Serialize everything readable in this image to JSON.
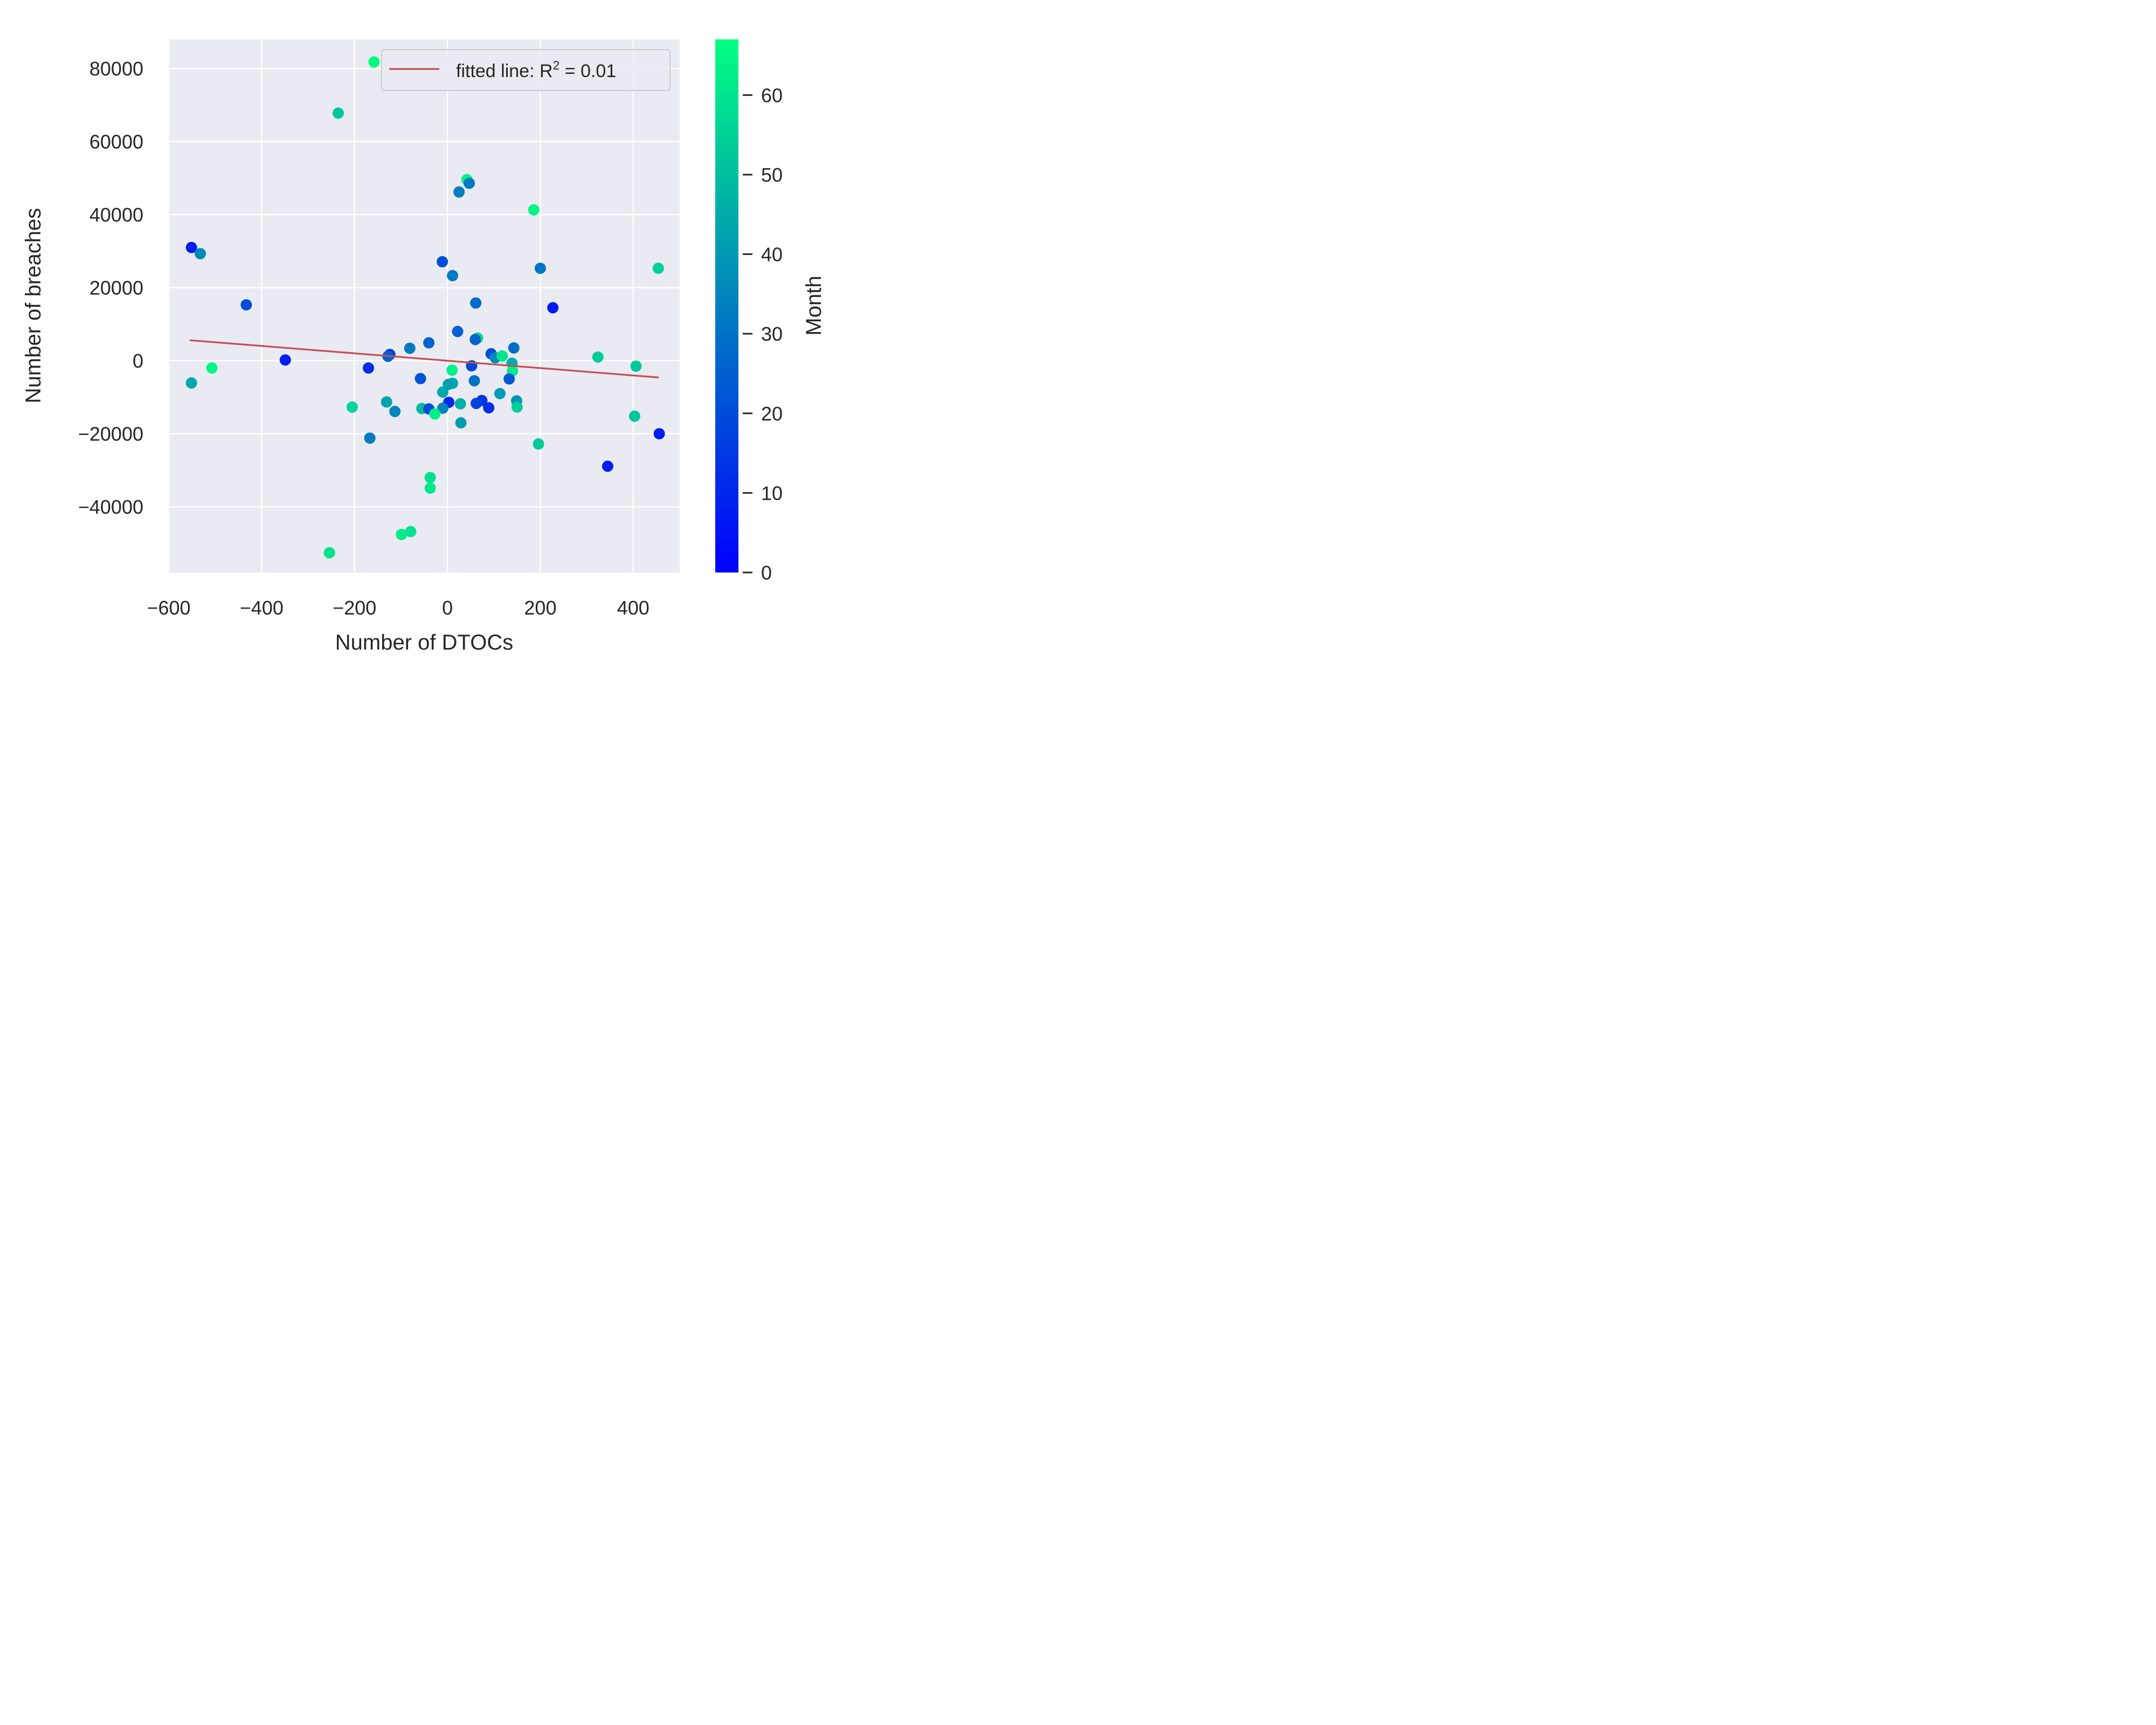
{
  "chart_data": {
    "type": "scatter",
    "xlabel": "Number of DTOCs",
    "ylabel": "Number of breaches",
    "xlim": [
      -600,
      500
    ],
    "ylim": [
      -58000,
      88000
    ],
    "x_ticks": [
      -600,
      -400,
      -200,
      0,
      200,
      400
    ],
    "x_tick_labels": [
      "−600",
      "−400",
      "−200",
      "0",
      "200",
      "400"
    ],
    "y_ticks": [
      -40000,
      -20000,
      0,
      20000,
      40000,
      60000,
      80000
    ],
    "y_tick_labels": [
      "−40000",
      "−20000",
      "0",
      "20000",
      "40000",
      "60000",
      "80000"
    ],
    "grid": true,
    "background": "#eaeaf2",
    "colormap": "winter",
    "colorbar": {
      "label": "Month",
      "range": [
        0,
        67
      ],
      "ticks": [
        0,
        10,
        20,
        30,
        40,
        50,
        60
      ],
      "tick_labels": [
        "0",
        "10",
        "20",
        "30",
        "40",
        "50",
        "60"
      ],
      "colors": [
        "#0000ff",
        "#00ff80"
      ]
    },
    "legend": {
      "position": "top-right",
      "text_main": "fitted line: R",
      "text_sup": "2",
      "text_tail": " = 0.01"
    },
    "fit_line": {
      "x": [
        -555,
        455
      ],
      "y": [
        5600,
        -4600
      ],
      "color": "#c44e52"
    },
    "points": [
      {
        "x": -158,
        "y": 81800,
        "month": 66
      },
      {
        "x": -235,
        "y": 67800,
        "month": 52
      },
      {
        "x": 42,
        "y": 49600,
        "month": 64
      },
      {
        "x": 47,
        "y": 48600,
        "month": 32
      },
      {
        "x": 25,
        "y": 46200,
        "month": 33
      },
      {
        "x": 186,
        "y": 41300,
        "month": 65
      },
      {
        "x": -551,
        "y": 31000,
        "month": 8
      },
      {
        "x": -532,
        "y": 29300,
        "month": 36
      },
      {
        "x": -11,
        "y": 27100,
        "month": 20
      },
      {
        "x": 11,
        "y": 23300,
        "month": 32
      },
      {
        "x": 200,
        "y": 25300,
        "month": 31
      },
      {
        "x": 454,
        "y": 25300,
        "month": 55
      },
      {
        "x": -433,
        "y": 15300,
        "month": 20
      },
      {
        "x": 61,
        "y": 15800,
        "month": 28
      },
      {
        "x": 227,
        "y": 14500,
        "month": 7
      },
      {
        "x": 22,
        "y": 8000,
        "month": 25
      },
      {
        "x": 65,
        "y": 6200,
        "month": 58
      },
      {
        "x": 60,
        "y": 5800,
        "month": 26
      },
      {
        "x": -40,
        "y": 4900,
        "month": 26
      },
      {
        "x": -81,
        "y": 3400,
        "month": 32
      },
      {
        "x": 143,
        "y": 3500,
        "month": 29
      },
      {
        "x": -124,
        "y": 1700,
        "month": 15
      },
      {
        "x": -128,
        "y": 1200,
        "month": 25
      },
      {
        "x": 94,
        "y": 1900,
        "month": 21
      },
      {
        "x": 103,
        "y": 800,
        "month": 36
      },
      {
        "x": 118,
        "y": 1300,
        "month": 60
      },
      {
        "x": 324,
        "y": 1000,
        "month": 54
      },
      {
        "x": -349,
        "y": 200,
        "month": 8
      },
      {
        "x": 139,
        "y": -700,
        "month": 45
      },
      {
        "x": 52,
        "y": -1400,
        "month": 18
      },
      {
        "x": 406,
        "y": -1500,
        "month": 52
      },
      {
        "x": -507,
        "y": -2000,
        "month": 64
      },
      {
        "x": -170,
        "y": -2000,
        "month": 12
      },
      {
        "x": 10,
        "y": -2600,
        "month": 63
      },
      {
        "x": 140,
        "y": -2800,
        "month": 62
      },
      {
        "x": -58,
        "y": -4900,
        "month": 22
      },
      {
        "x": 133,
        "y": -5000,
        "month": 23
      },
      {
        "x": 58,
        "y": -5500,
        "month": 30
      },
      {
        "x": -551,
        "y": -6100,
        "month": 44
      },
      {
        "x": 11,
        "y": -6200,
        "month": 44
      },
      {
        "x": 2,
        "y": -6500,
        "month": 42
      },
      {
        "x": -10,
        "y": -8600,
        "month": 44
      },
      {
        "x": 113,
        "y": -9000,
        "month": 41
      },
      {
        "x": 149,
        "y": -11000,
        "month": 39
      },
      {
        "x": 3,
        "y": -11400,
        "month": 11
      },
      {
        "x": -131,
        "y": -11300,
        "month": 43
      },
      {
        "x": 74,
        "y": -10900,
        "month": 14
      },
      {
        "x": 62,
        "y": -11700,
        "month": 17
      },
      {
        "x": 28,
        "y": -11800,
        "month": 47
      },
      {
        "x": -205,
        "y": -12700,
        "month": 56
      },
      {
        "x": 150,
        "y": -12700,
        "month": 54
      },
      {
        "x": 89,
        "y": -12900,
        "month": 12
      },
      {
        "x": -55,
        "y": -13100,
        "month": 49
      },
      {
        "x": -40,
        "y": -13200,
        "month": 20
      },
      {
        "x": -10,
        "y": -13000,
        "month": 35
      },
      {
        "x": -113,
        "y": -13900,
        "month": 35
      },
      {
        "x": -27,
        "y": -14600,
        "month": 63
      },
      {
        "x": 403,
        "y": -15200,
        "month": 52
      },
      {
        "x": 29,
        "y": -17000,
        "month": 41
      },
      {
        "x": 456,
        "y": -20000,
        "month": 7
      },
      {
        "x": -167,
        "y": -21200,
        "month": 32
      },
      {
        "x": 196,
        "y": -22800,
        "month": 53
      },
      {
        "x": 345,
        "y": -28900,
        "month": 8
      },
      {
        "x": -37,
        "y": -32000,
        "month": 59
      },
      {
        "x": -37,
        "y": -34900,
        "month": 61
      },
      {
        "x": -79,
        "y": -46800,
        "month": 60
      },
      {
        "x": -99,
        "y": -47600,
        "month": 62
      },
      {
        "x": -254,
        "y": -52600,
        "month": 59
      }
    ]
  }
}
